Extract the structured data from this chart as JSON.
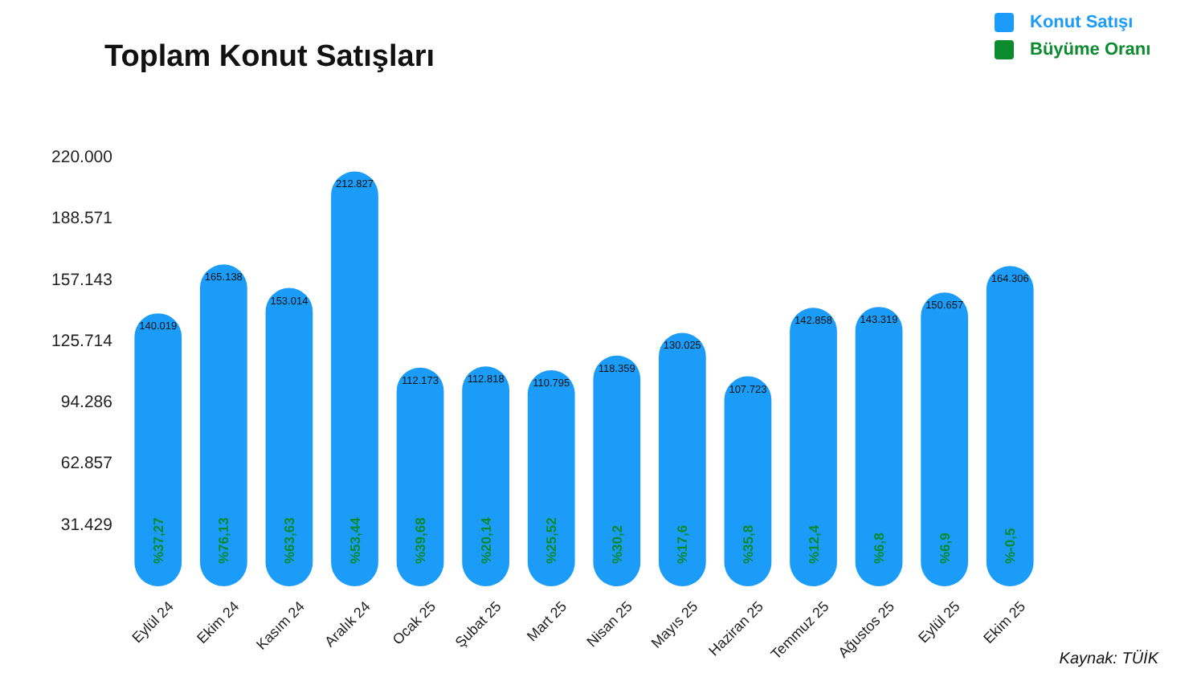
{
  "chart_data": {
    "type": "bar",
    "title": "Toplam Konut Satışları",
    "categories": [
      "Eylül 24",
      "Ekim 24",
      "Kasım 24",
      "Aralık 24",
      "Ocak 25",
      "Şubat 25",
      "Mart 25",
      "Nisan 25",
      "Mayıs 25",
      "Haziran 25",
      "Temmuz 25",
      "Ağustos 25",
      "Eylül 25",
      "Ekim 25"
    ],
    "series": [
      {
        "name": "Konut Satışı",
        "color": "#1a9cf8",
        "values": [
          140019,
          165138,
          153014,
          212827,
          112173,
          112818,
          110795,
          118359,
          130025,
          107723,
          142858,
          143319,
          150657,
          164306
        ],
        "value_labels": [
          "140.019",
          "165.138",
          "153.014",
          "212.827",
          "112.173",
          "112.818",
          "110.795",
          "118.359",
          "130.025",
          "107.723",
          "142.858",
          "143.319",
          "150.657",
          "164.306"
        ]
      },
      {
        "name": "Büyüme Oranı",
        "type": "other",
        "color": "#0b8a2e",
        "values": [
          null,
          null,
          null,
          null,
          null,
          null,
          null,
          null,
          null,
          null,
          null,
          null,
          null,
          null
        ]
      }
    ],
    "ylim": [
      0,
      220000
    ],
    "yticks": [
      {
        "value": 31429,
        "label": "31.429"
      },
      {
        "value": 62857,
        "label": "62.857"
      },
      {
        "value": 94286,
        "label": "94.286"
      },
      {
        "value": 125714,
        "label": "125.714"
      },
      {
        "value": 157143,
        "label": "157.143"
      },
      {
        "value": 188571,
        "label": "188.571"
      },
      {
        "value": 220000,
        "label": "220.000"
      }
    ],
    "legend": "top right",
    "annotations": [
      {
        "text": "%37,27",
        "x": "Eylül 24",
        "y": 0
      },
      {
        "text": "%76,13",
        "x": "Ekim 24",
        "y": 0
      },
      {
        "text": "%63,63",
        "x": "Kasım 24",
        "y": 0
      },
      {
        "text": "%53,44",
        "x": "Aralık 24",
        "y": 0
      },
      {
        "text": "%39,68",
        "x": "Ocak 25",
        "y": 0
      },
      {
        "text": "%20,14",
        "x": "Şubat 25",
        "y": 0
      },
      {
        "text": "%25,52",
        "x": "Mart 25",
        "y": 0
      },
      {
        "text": "%30,2",
        "x": "Nisan 25",
        "y": 0
      },
      {
        "text": "%17,6",
        "x": "Mayıs 25",
        "y": 0
      },
      {
        "text": "%35,8",
        "x": "Haziran 25",
        "y": 0
      },
      {
        "text": "%12,4",
        "x": "Temmuz 25",
        "y": 0
      },
      {
        "text": "%6,8",
        "x": "Ağustos 25",
        "y": 0
      },
      {
        "text": "%6,9",
        "x": "Eylül 25",
        "y": 0
      },
      {
        "text": "%-0,5",
        "x": "Ekim 25",
        "y": 0
      },
      "Kaynak: TÜİK"
    ]
  }
}
